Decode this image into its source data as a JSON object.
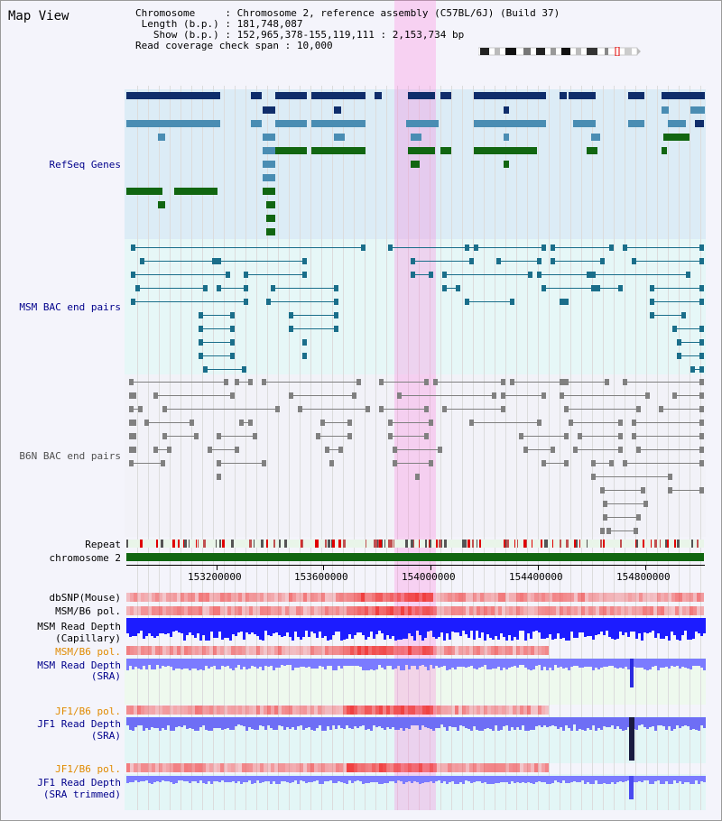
{
  "page": {
    "title": "Map View",
    "info": {
      "chromosome_label": "Chromosome",
      "chromosome_value": "Chromosome 2, reference assembly (C57BL/6J) (Build 37)",
      "length_label": "Length (b.p.)",
      "length_value": "181,748,087",
      "show_label": "Show (b.p.)",
      "show_value": "152,965,378-155,119,111 : 2,153,734 bp",
      "coverage_label": "Read coverage check span",
      "coverage_value": "10,000"
    }
  },
  "tracks": {
    "refseq": "RefSeq Genes",
    "msm_bac": "MSM BAC end pairs",
    "b6n_bac": "B6N BAC end pairs",
    "repeat": "Repeat",
    "chromosome": "chromosome 2",
    "dbsnp": "dbSNP(Mouse)",
    "msm_b6_pol_1": "MSM/B6 pol.",
    "msm_read_depth_cap_1": "MSM Read Depth",
    "msm_read_depth_cap_2": "(Capillary)",
    "msm_b6_pol_2": "MSM/B6 pol.",
    "msm_read_depth_sra_1": "MSM Read Depth",
    "msm_read_depth_sra_2": "(SRA)",
    "jf1_b6_pol_1": "JF1/B6 pol.",
    "jf1_read_depth_sra_1": "JF1 Read Depth",
    "jf1_read_depth_sra_2": "(SRA)",
    "jf1_b6_pol_2": "JF1/B6 pol.",
    "jf1_read_depth_trim_1": "JF1 Read Depth",
    "jf1_read_depth_trim_2": "(SRA trimmed)"
  },
  "axis": {
    "ticks": [
      "153200000",
      "153600000",
      "154000000",
      "154400000",
      "154800000"
    ]
  },
  "colors": {
    "refseq_bg": "#dcecf6",
    "msm_bac_bg": "#e6f7f7",
    "b6n_bac_bg": "#f2f2f8",
    "highlight": "#f9c6ec",
    "gene_dark": "#0f2d6b",
    "gene_mid": "#4a8db3",
    "gene_green": "#116611",
    "msm_pair": "#1a6e8a",
    "b6n_pair": "#808080",
    "depth_blue": "#1c1cff",
    "depth_light": "#7b7bff",
    "pol_red": "#e83030"
  }
}
